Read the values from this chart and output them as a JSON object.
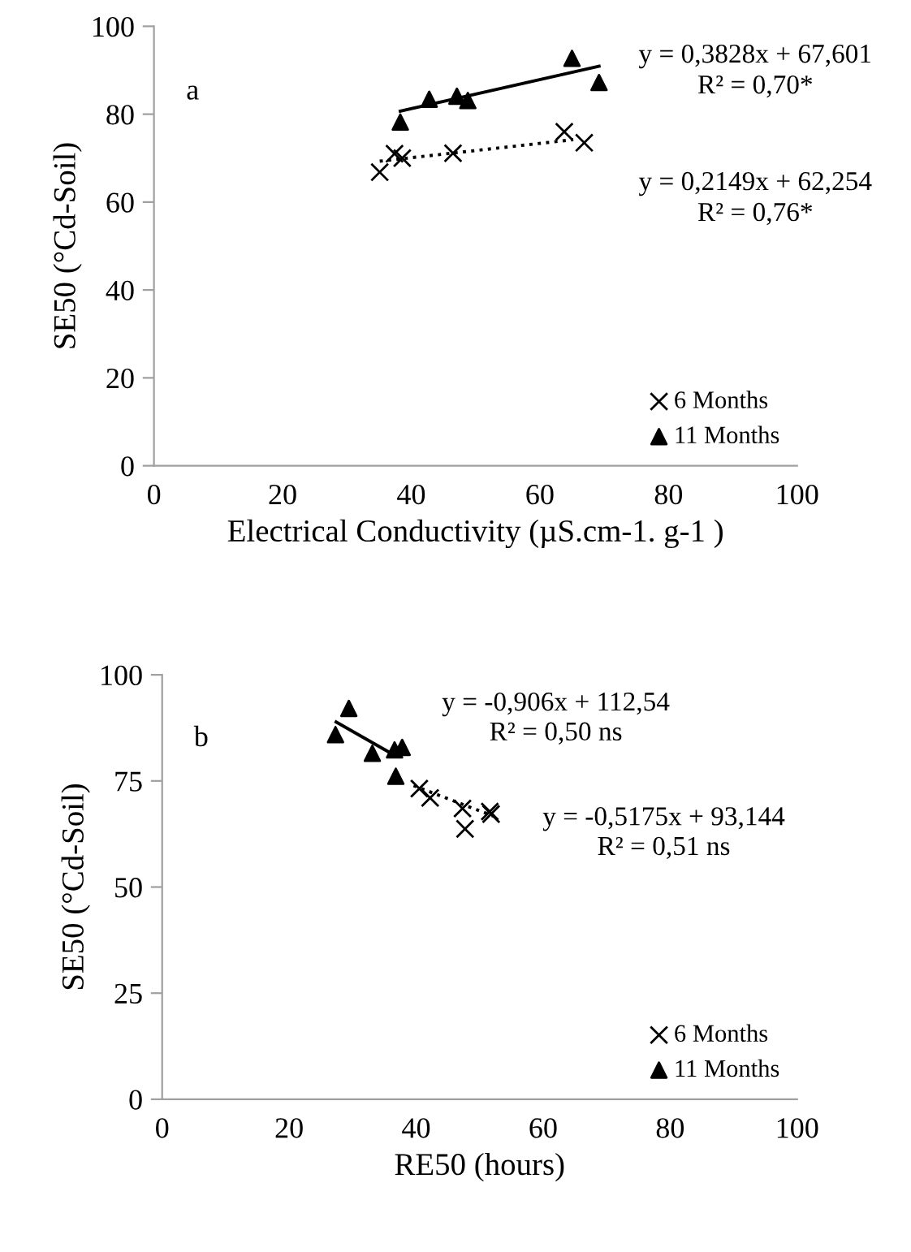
{
  "chart_data": [
    {
      "type": "scatter",
      "xlabel": "Electrical Conductivity (µS.cm-1. g-1 )",
      "ylabel": "SE50 (°Cd-Soil)",
      "xlim": [
        0,
        100
      ],
      "xticks": [
        0,
        20,
        40,
        60,
        80,
        100
      ],
      "ylim": [
        0,
        100
      ],
      "yticks": [
        0,
        20,
        40,
        60,
        80,
        100
      ],
      "grid": false,
      "legend": "bottom right",
      "annotations": [
        "a",
        "y = 0,3828x + 67,601",
        "R² = 0,70*",
        "y = 0,2149x + 62,254",
        "R² = 0,76*"
      ],
      "series": [
        {
          "name": "6 Months",
          "color": "#000000",
          "marker": "cross",
          "x": [
            35.1,
            37.4,
            38.6,
            46.5,
            63.8,
            66.9
          ],
          "values": [
            66.8,
            71.0,
            70.0,
            71.1,
            76.0,
            73.5
          ]
        },
        {
          "name": "11 Months",
          "color": "#000000",
          "marker": "triangle",
          "x": [
            38.3,
            42.8,
            47.1,
            48.8,
            65.0,
            69.2
          ],
          "values": [
            78.2,
            83.4,
            84.1,
            83.1,
            92.7,
            87.2
          ]
        },
        {
          "type": "line",
          "color": "#000000",
          "marker": "none",
          "line_style": "dotted",
          "x": [
            35.1,
            65.2
          ],
          "values": [
            69.3,
            74.2
          ]
        },
        {
          "type": "line",
          "color": "#000000",
          "marker": "none",
          "line_style": "solid",
          "x": [
            38.3,
            69.2
          ],
          "values": [
            80.7,
            90.9
          ]
        }
      ]
    },
    {
      "type": "scatter",
      "xlabel": "RE50 (hours)",
      "ylabel": "SE50 (°Cd-Soil)",
      "xlim": [
        0,
        100
      ],
      "xticks": [
        0,
        20,
        40,
        60,
        80,
        100
      ],
      "ylim": [
        0,
        100
      ],
      "yticks": [
        0,
        25,
        50,
        75,
        100
      ],
      "grid": false,
      "legend": "bottom right",
      "annotations": [
        "b",
        "y = -0,906x + 112,54",
        "R² = 0,50 ns",
        "y = -0,5175x + 93,144",
        "R² = 0,51 ns"
      ],
      "series": [
        {
          "name": "6 Months",
          "color": "#000000",
          "marker": "cross",
          "x": [
            40.5,
            42.2,
            47.3,
            47.7,
            51.6,
            51.8
          ],
          "values": [
            73.2,
            71.0,
            68.5,
            63.7,
            67.8,
            67.2
          ]
        },
        {
          "name": "11 Months",
          "color": "#000000",
          "marker": "triangle",
          "x": [
            29.4,
            27.3,
            33.1,
            36.6,
            37.8,
            36.8
          ],
          "values": [
            92.1,
            85.9,
            81.5,
            82.3,
            82.9,
            76.1
          ]
        },
        {
          "type": "line",
          "color": "#000000",
          "marker": "none",
          "line_style": "dotted",
          "x": [
            39.6,
            52.9
          ],
          "values": [
            73.9,
            66.3
          ]
        },
        {
          "type": "line",
          "color": "#000000",
          "marker": "none",
          "line_style": "solid",
          "x": [
            27.4,
            35.6
          ],
          "values": [
            88.9,
            81.9
          ]
        }
      ]
    }
  ]
}
